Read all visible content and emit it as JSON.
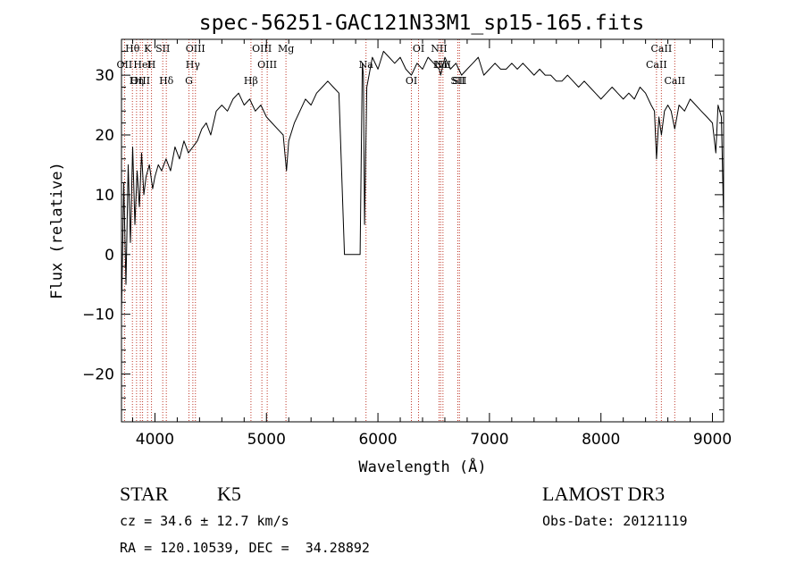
{
  "chart_data": {
    "type": "line",
    "title": "spec-56251-GAC121N33M1_sp15-165.fits",
    "xlabel": "Wavelength (Å)",
    "ylabel": "Flux (relative)",
    "xlim": [
      3700,
      9100
    ],
    "ylim": [
      -28,
      36
    ],
    "x_ticks": [
      4000,
      5000,
      6000,
      7000,
      8000,
      9000
    ],
    "y_ticks": [
      -20,
      -10,
      0,
      10,
      20,
      30
    ],
    "series": [
      {
        "name": "flux",
        "x": [
          3700,
          3720,
          3740,
          3760,
          3780,
          3800,
          3820,
          3840,
          3860,
          3880,
          3900,
          3920,
          3950,
          3980,
          4000,
          4030,
          4060,
          4100,
          4140,
          4180,
          4220,
          4260,
          4300,
          4340,
          4380,
          4420,
          4460,
          4500,
          4550,
          4600,
          4650,
          4700,
          4750,
          4800,
          4850,
          4900,
          4950,
          5000,
          5050,
          5100,
          5150,
          5180,
          5200,
          5250,
          5300,
          5350,
          5400,
          5450,
          5500,
          5550,
          5600,
          5650,
          5700,
          5720,
          5740,
          5800,
          5840,
          5860,
          5870,
          5880,
          5900,
          5920,
          5950,
          6000,
          6050,
          6100,
          6150,
          6200,
          6250,
          6300,
          6350,
          6400,
          6450,
          6500,
          6550,
          6563,
          6600,
          6650,
          6700,
          6750,
          6800,
          6850,
          6900,
          6950,
          7000,
          7050,
          7100,
          7150,
          7200,
          7250,
          7300,
          7350,
          7400,
          7450,
          7500,
          7550,
          7600,
          7650,
          7700,
          7750,
          7800,
          7850,
          7900,
          7950,
          8000,
          8050,
          8100,
          8150,
          8200,
          8250,
          8300,
          8350,
          8400,
          8450,
          8480,
          8498,
          8520,
          8542,
          8570,
          8600,
          8630,
          8662,
          8700,
          8750,
          8800,
          8850,
          8900,
          8950,
          9000,
          9030,
          9050,
          9080,
          9100
        ],
        "y": [
          -10,
          12,
          -5,
          15,
          2,
          18,
          5,
          14,
          8,
          17,
          10,
          13,
          15,
          11,
          13,
          15,
          14,
          16,
          14,
          18,
          16,
          19,
          17,
          18,
          19,
          21,
          22,
          20,
          24,
          25,
          24,
          26,
          27,
          25,
          26,
          24,
          25,
          23,
          22,
          21,
          20,
          14,
          19,
          22,
          24,
          26,
          25,
          27,
          28,
          29,
          28,
          27,
          0,
          0,
          0,
          0,
          0,
          32,
          30,
          5,
          28,
          30,
          33,
          31,
          34,
          33,
          32,
          33,
          31,
          30,
          32,
          31,
          33,
          32,
          31,
          30,
          33,
          31,
          32,
          30,
          31,
          32,
          33,
          30,
          31,
          32,
          31,
          31,
          32,
          31,
          32,
          31,
          30,
          31,
          30,
          30,
          29,
          29,
          30,
          29,
          28,
          29,
          28,
          27,
          26,
          27,
          28,
          27,
          26,
          27,
          26,
          28,
          27,
          25,
          24,
          16,
          23,
          20,
          24,
          25,
          24,
          21,
          25,
          24,
          26,
          25,
          24,
          23,
          22,
          17,
          25,
          23,
          6
        ]
      }
    ],
    "spectral_lines": [
      {
        "label": "Hθ",
        "wavelength": 3798
      },
      {
        "label": "OII",
        "wavelength": 3727
      },
      {
        "label": "OIII",
        "wavelength": 3869
      },
      {
        "label": "K",
        "wavelength": 3934
      },
      {
        "label": "HeI",
        "wavelength": 3889
      },
      {
        "label": "Hη",
        "wavelength": 3835
      },
      {
        "label": "SII",
        "wavelength": 4070
      },
      {
        "label": "H",
        "wavelength": 3969
      },
      {
        "label": "Hδ",
        "wavelength": 4102
      },
      {
        "label": "OIII",
        "wavelength": 4363
      },
      {
        "label": "Hγ",
        "wavelength": 4340
      },
      {
        "label": "G",
        "wavelength": 4305
      },
      {
        "label": "OIII",
        "wavelength": 4959
      },
      {
        "label": "OIII",
        "wavelength": 5007
      },
      {
        "label": "Hβ",
        "wavelength": 4861
      },
      {
        "label": "Mg",
        "wavelength": 5175
      },
      {
        "label": "Na",
        "wavelength": 5893
      },
      {
        "label": "OI",
        "wavelength": 6300
      },
      {
        "label": "OI",
        "wavelength": 6364
      },
      {
        "label": "Hα",
        "wavelength": 6563
      },
      {
        "label": "SII",
        "wavelength": 6716
      },
      {
        "label": "NII",
        "wavelength": 6548
      },
      {
        "label": "NII",
        "wavelength": 6583
      },
      {
        "label": "SII",
        "wavelength": 6731
      },
      {
        "label": "CaII",
        "wavelength": 8542
      },
      {
        "label": "CaII",
        "wavelength": 8498
      },
      {
        "label": "CaII",
        "wavelength": 8662
      }
    ]
  },
  "info": {
    "object_class": "STAR",
    "subclass": "K5",
    "survey": "LAMOST DR3",
    "cz": "cz = 34.6 ± 12.7 km/s",
    "obs_date": "Obs-Date: 20121119",
    "coords": "RA = 120.10539, DEC =  34.28892"
  }
}
